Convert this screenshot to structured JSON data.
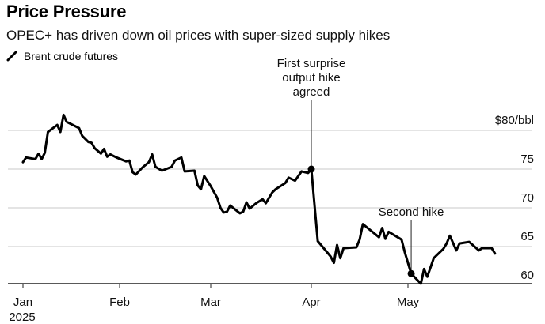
{
  "header": {
    "title": "Price Pressure",
    "subtitle": "OPEC+ has driven down oil prices with super-sized supply hikes",
    "legend_label": "Brent crude futures"
  },
  "chart_data": {
    "type": "line",
    "title": "Price Pressure",
    "subtitle": "OPEC+ has driven down oil prices with super-sized supply hikes",
    "xlabel": "",
    "ylabel": "",
    "ylim": [
      60,
      80
    ],
    "yticks": [
      {
        "value": 80,
        "label": "$80/bbl"
      },
      {
        "value": 75,
        "label": "75"
      },
      {
        "value": 70,
        "label": "70"
      },
      {
        "value": 65,
        "label": "65"
      },
      {
        "value": 60,
        "label": "60"
      }
    ],
    "xticks": [
      {
        "date": "2025-01-01",
        "label": "Jan",
        "sublabel": "2025"
      },
      {
        "date": "2025-02-01",
        "label": "Feb"
      },
      {
        "date": "2025-03-01",
        "label": "Mar"
      },
      {
        "date": "2025-04-01",
        "label": "Apr"
      },
      {
        "date": "2025-05-01",
        "label": "May"
      }
    ],
    "xlim": [
      "2025-01-01",
      "2025-05-31"
    ],
    "grid": true,
    "legend": "top-left",
    "series": [
      {
        "name": "Brent crude futures",
        "color": "#000000",
        "points": [
          [
            "2025-01-01",
            75.9
          ],
          [
            "2025-01-02",
            76.5
          ],
          [
            "2025-01-05",
            76.3
          ],
          [
            "2025-01-06",
            77.0
          ],
          [
            "2025-01-07",
            76.3
          ],
          [
            "2025-01-08",
            77.1
          ],
          [
            "2025-01-09",
            79.8
          ],
          [
            "2025-01-12",
            80.7
          ],
          [
            "2025-01-13",
            79.8
          ],
          [
            "2025-01-14",
            82.0
          ],
          [
            "2025-01-15",
            81.1
          ],
          [
            "2025-01-19",
            80.3
          ],
          [
            "2025-01-20",
            79.3
          ],
          [
            "2025-01-22",
            78.5
          ],
          [
            "2025-01-23",
            78.4
          ],
          [
            "2025-01-24",
            77.7
          ],
          [
            "2025-01-26",
            77.0
          ],
          [
            "2025-01-27",
            77.6
          ],
          [
            "2025-01-28",
            76.6
          ],
          [
            "2025-01-29",
            76.9
          ],
          [
            "2025-01-31",
            76.5
          ],
          [
            "2025-02-03",
            76.0
          ],
          [
            "2025-02-04",
            76.1
          ],
          [
            "2025-02-05",
            74.6
          ],
          [
            "2025-02-06",
            74.3
          ],
          [
            "2025-02-08",
            75.2
          ],
          [
            "2025-02-10",
            75.9
          ],
          [
            "2025-02-11",
            76.9
          ],
          [
            "2025-02-12",
            75.3
          ],
          [
            "2025-02-14",
            74.8
          ],
          [
            "2025-02-17",
            75.3
          ],
          [
            "2025-02-18",
            76.1
          ],
          [
            "2025-02-20",
            76.5
          ],
          [
            "2025-02-21",
            74.7
          ],
          [
            "2025-02-24",
            74.8
          ],
          [
            "2025-02-25",
            72.9
          ],
          [
            "2025-02-26",
            72.4
          ],
          [
            "2025-02-27",
            74.1
          ],
          [
            "2025-03-01",
            72.8
          ],
          [
            "2025-03-03",
            71.3
          ],
          [
            "2025-03-04",
            70.0
          ],
          [
            "2025-03-05",
            69.4
          ],
          [
            "2025-03-06",
            69.5
          ],
          [
            "2025-03-07",
            70.3
          ],
          [
            "2025-03-10",
            69.3
          ],
          [
            "2025-03-11",
            69.5
          ],
          [
            "2025-03-12",
            70.7
          ],
          [
            "2025-03-13",
            69.9
          ],
          [
            "2025-03-15",
            70.6
          ],
          [
            "2025-03-17",
            71.1
          ],
          [
            "2025-03-18",
            70.6
          ],
          [
            "2025-03-20",
            72.0
          ],
          [
            "2025-03-21",
            72.4
          ],
          [
            "2025-03-24",
            73.2
          ],
          [
            "2025-03-25",
            73.9
          ],
          [
            "2025-03-27",
            73.5
          ],
          [
            "2025-03-29",
            74.7
          ],
          [
            "2025-03-31",
            74.5
          ],
          [
            "2025-04-01",
            75.0
          ],
          [
            "2025-04-03",
            65.7
          ],
          [
            "2025-04-05",
            64.7
          ],
          [
            "2025-04-07",
            63.7
          ],
          [
            "2025-04-08",
            62.9
          ],
          [
            "2025-04-09",
            65.2
          ],
          [
            "2025-04-10",
            63.5
          ],
          [
            "2025-04-11",
            64.8
          ],
          [
            "2025-04-15",
            64.9
          ],
          [
            "2025-04-16",
            65.9
          ],
          [
            "2025-04-17",
            67.9
          ],
          [
            "2025-04-22",
            66.2
          ],
          [
            "2025-04-23",
            67.4
          ],
          [
            "2025-04-24",
            66.0
          ],
          [
            "2025-04-25",
            66.9
          ],
          [
            "2025-04-29",
            65.9
          ],
          [
            "2025-04-30",
            64.3
          ],
          [
            "2025-05-02",
            61.5
          ],
          [
            "2025-05-05",
            60.2
          ],
          [
            "2025-05-06",
            62.1
          ],
          [
            "2025-05-07",
            61.1
          ],
          [
            "2025-05-09",
            63.5
          ],
          [
            "2025-05-12",
            64.7
          ],
          [
            "2025-05-13",
            65.4
          ],
          [
            "2025-05-14",
            66.4
          ],
          [
            "2025-05-16",
            64.5
          ],
          [
            "2025-05-17",
            65.4
          ],
          [
            "2025-05-20",
            65.6
          ],
          [
            "2025-05-23",
            64.5
          ],
          [
            "2025-05-24",
            64.8
          ],
          [
            "2025-05-27",
            64.8
          ],
          [
            "2025-05-28",
            64.1
          ]
        ]
      }
    ],
    "annotations": [
      {
        "date": "2025-04-01",
        "value": 75.0,
        "lines": [
          "First surprise",
          "output hike",
          "agreed"
        ],
        "label_value": 84.3
      },
      {
        "date": "2025-05-02",
        "value": 61.5,
        "lines": [
          "Second hike"
        ],
        "label_value": 68.8
      }
    ]
  }
}
